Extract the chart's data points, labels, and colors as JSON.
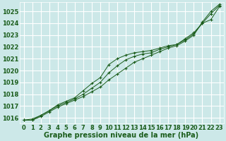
{
  "xlabel": "Graphe pression niveau de la mer (hPa)",
  "x": [
    0,
    1,
    2,
    3,
    4,
    5,
    6,
    7,
    8,
    9,
    10,
    11,
    12,
    13,
    14,
    15,
    16,
    17,
    18,
    19,
    20,
    21,
    22,
    23
  ],
  "line1": [
    1015.8,
    1015.8,
    1016.1,
    1016.5,
    1016.9,
    1017.2,
    1017.5,
    1017.8,
    1018.2,
    1018.6,
    1019.2,
    1019.7,
    1020.2,
    1020.7,
    1021.0,
    1021.3,
    1021.6,
    1021.9,
    1022.1,
    1022.5,
    1023.0,
    1024.1,
    1025.0,
    1025.6
  ],
  "line2": [
    1015.8,
    1015.8,
    1016.2,
    1016.6,
    1017.1,
    1017.4,
    1017.7,
    1018.3,
    1018.9,
    1019.4,
    1020.5,
    1021.0,
    1021.3,
    1021.5,
    1021.6,
    1021.7,
    1021.9,
    1022.1,
    1022.2,
    1022.7,
    1023.2,
    1024.0,
    1024.3,
    1025.4
  ],
  "line3": [
    1015.8,
    1015.9,
    1016.2,
    1016.6,
    1017.0,
    1017.3,
    1017.6,
    1018.0,
    1018.5,
    1019.0,
    1019.8,
    1020.4,
    1020.9,
    1021.2,
    1021.4,
    1021.5,
    1021.8,
    1022.0,
    1022.2,
    1022.6,
    1023.1,
    1024.0,
    1024.8,
    1025.5
  ],
  "line_color": "#1a5c1a",
  "marker_color": "#1a5c1a",
  "bg_color": "#cce8e8",
  "grid_color": "#ffffff",
  "text_color": "#1a5c1a",
  "ylim": [
    1015.5,
    1025.8
  ],
  "yticks": [
    1016,
    1017,
    1018,
    1019,
    1020,
    1021,
    1022,
    1023,
    1024,
    1025
  ],
  "xticks": [
    0,
    1,
    2,
    3,
    4,
    5,
    6,
    7,
    8,
    9,
    10,
    11,
    12,
    13,
    14,
    15,
    16,
    17,
    18,
    19,
    20,
    21,
    22,
    23
  ],
  "label_fontsize": 7,
  "tick_fontsize": 6
}
